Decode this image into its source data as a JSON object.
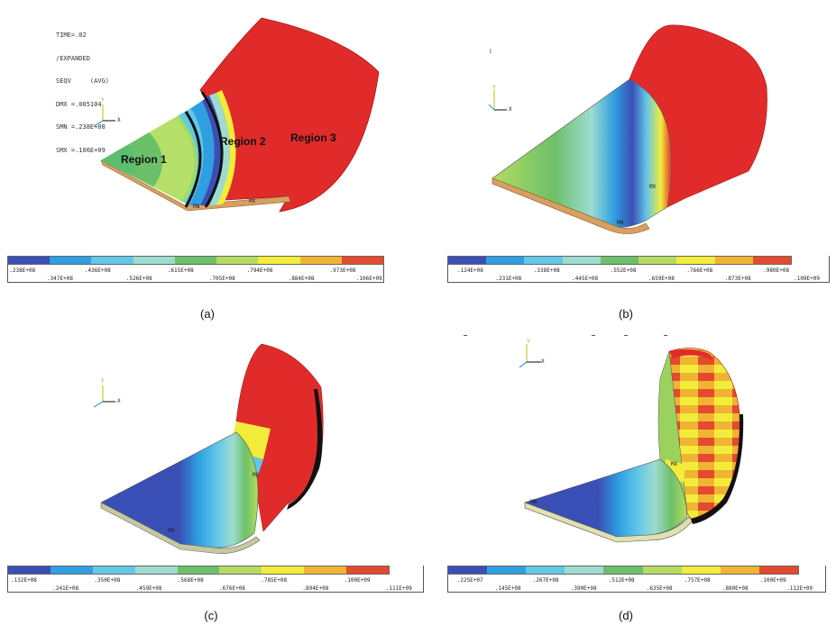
{
  "panels": [
    {
      "id": "a",
      "caption": "(a)",
      "info_lines": [
        "TIME=.02",
        "/EXPANDED",
        "SEQV     (AVG)",
        "DMX =.005104",
        "SMN =.238E+08",
        "SMX =.106E+09"
      ],
      "region_labels": [
        "Region 1",
        "Region 2",
        "Region 3"
      ],
      "markers": [
        "MN",
        "MX"
      ],
      "ticks_top": [
        ".238E+08",
        ".436E+08",
        ".615E+08",
        ".794E+08",
        ".973E+08"
      ],
      "ticks_bottom": [
        ".347E+08",
        ".526E+08",
        ".705E+08",
        ".884E+08",
        ".106E+09"
      ]
    },
    {
      "id": "b",
      "caption": "(b)",
      "markers": [
        "MN",
        "MX"
      ],
      "ticks_top": [
        ".124E+08",
        ".338E+08",
        ".552E+08",
        ".766E+08",
        ".980E+08"
      ],
      "ticks_bottom": [
        ".231E+08",
        ".445E+08",
        ".659E+08",
        ".873E+08",
        ".109E+09"
      ]
    },
    {
      "id": "c",
      "caption": "(c)",
      "markers": [
        "MN",
        "MX"
      ],
      "ticks_top": [
        ".132E+08",
        ".350E+08",
        ".568E+08",
        ".785E+08",
        ".100E+09"
      ],
      "ticks_bottom": [
        ".241E+08",
        ".459E+08",
        ".676E+08",
        ".894E+08",
        ".111E+09"
      ]
    },
    {
      "id": "d",
      "caption": "(d)",
      "markers": [
        "MN",
        "MX"
      ],
      "ticks_top": [
        ".225E+07",
        ".267E+08",
        ".512E+08",
        ".757E+08",
        ".100E+09"
      ],
      "ticks_bottom": [
        ".145E+08",
        ".390E+08",
        ".635E+08",
        ".880E+08",
        ".112E+09"
      ]
    }
  ],
  "colormap": [
    "#3a4fb5",
    "#2e9fe0",
    "#63c7e8",
    "#9ddcd0",
    "#6dc06a",
    "#b3dc61",
    "#f2ed3a",
    "#f1b432",
    "#e34a2e"
  ],
  "triad": {
    "y": "Y",
    "x": "X"
  },
  "colors": {
    "red": "#e12b2b",
    "dark_blue": "#2f3fae",
    "outline": "#111111"
  }
}
